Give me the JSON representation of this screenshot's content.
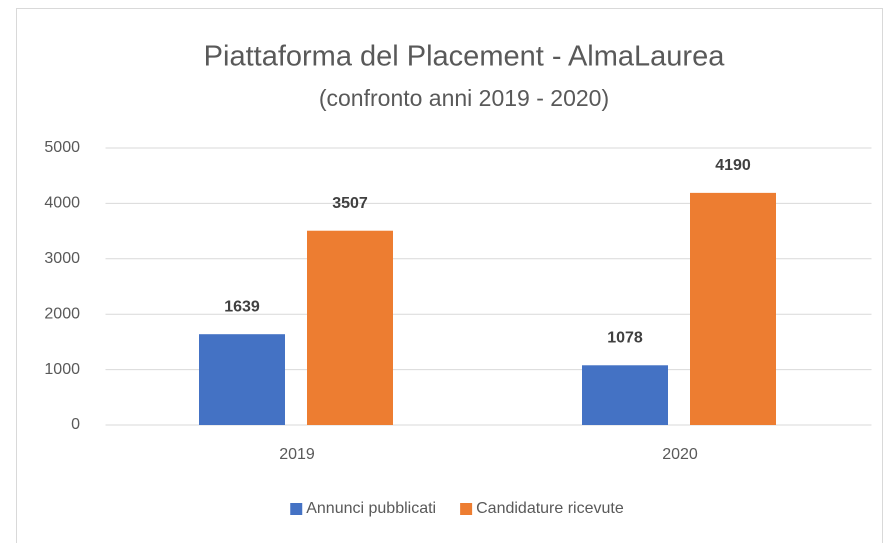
{
  "chart_data": {
    "type": "bar",
    "title": "Piattaforma del Placement - AlmaLaurea",
    "subtitle": "(confronto anni 2019 - 2020)",
    "categories": [
      "2019",
      "2020"
    ],
    "series": [
      {
        "name": "Annunci pubblicati",
        "color": "#4472c4",
        "values": [
          1639,
          1078
        ]
      },
      {
        "name": "Candidature ricevute",
        "color": "#ed7d31",
        "values": [
          3507,
          4190
        ]
      }
    ],
    "ylim": [
      0,
      5000
    ],
    "yticks": [
      0,
      1000,
      2000,
      3000,
      4000,
      5000
    ],
    "grid": true,
    "legend": "bottom"
  }
}
